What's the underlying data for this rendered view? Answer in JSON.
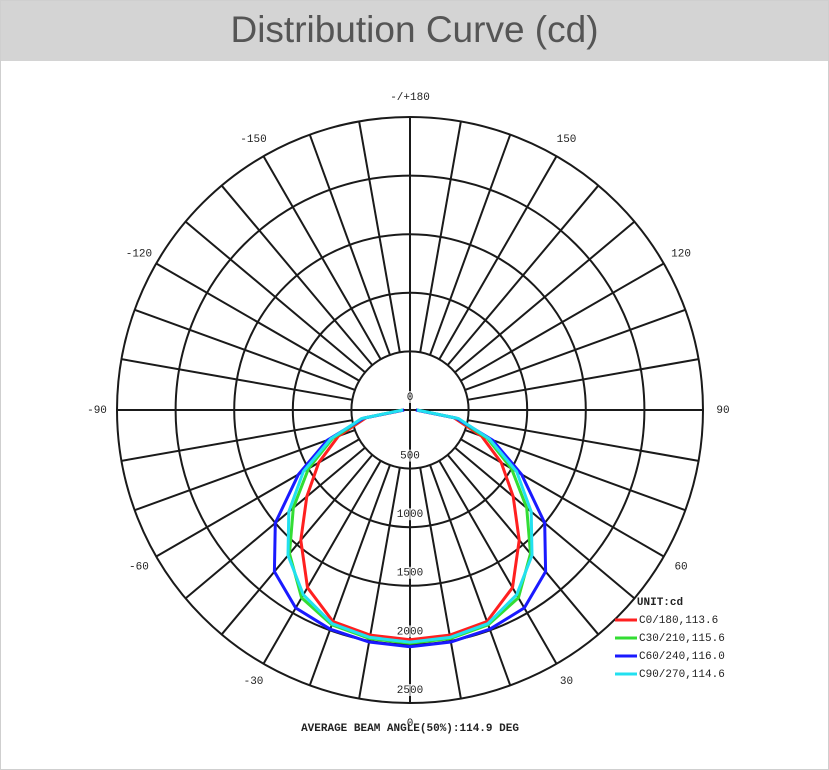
{
  "header": {
    "title": "Distribution Curve (cd)"
  },
  "chart_data": {
    "type": "polar",
    "angles": [
      -90,
      -80,
      -70,
      -60,
      -50,
      -40,
      -30,
      -20,
      -10,
      0,
      10,
      20,
      30,
      40,
      50,
      60,
      70,
      80,
      90
    ],
    "series": [
      {
        "name": "C0/180,113.6",
        "color": "#ff2020",
        "values": [
          50,
          380,
          650,
          900,
          1150,
          1450,
          1750,
          1920,
          1950,
          1960,
          1950,
          1920,
          1750,
          1450,
          1150,
          900,
          650,
          380,
          50
        ]
      },
      {
        "name": "C30/210,115.6",
        "color": "#33dd33",
        "values": [
          60,
          400,
          700,
          1000,
          1300,
          1600,
          1850,
          1950,
          1980,
          1990,
          1980,
          1950,
          1850,
          1600,
          1300,
          1000,
          700,
          400,
          60
        ]
      },
      {
        "name": "C60/240,116.0",
        "color": "#1a1aff",
        "values": [
          50,
          400,
          750,
          1100,
          1500,
          1800,
          1950,
          1990,
          2010,
          2020,
          2010,
          1990,
          1950,
          1800,
          1500,
          1100,
          750,
          400,
          50
        ]
      },
      {
        "name": "C90/270,114.6",
        "color": "#22e0f0",
        "values": [
          60,
          420,
          720,
          1050,
          1350,
          1620,
          1820,
          1940,
          1970,
          1980,
          1970,
          1940,
          1820,
          1620,
          1350,
          1050,
          720,
          420,
          60
        ]
      }
    ],
    "rlim": [
      0,
      2500
    ],
    "rticks": [
      0,
      500,
      1000,
      1500,
      2000,
      2500
    ],
    "thetaticks": [
      -150,
      -120,
      -90,
      -60,
      -30,
      0,
      30,
      60,
      90,
      120,
      150,
      {
        "value": 180,
        "label": "-/+180"
      }
    ],
    "theta_gridlines": [
      -170,
      -160,
      -150,
      -140,
      -130,
      -120,
      -110,
      -100,
      -90,
      -80,
      -70,
      -60,
      -50,
      -40,
      -30,
      -20,
      -10,
      0,
      10,
      20,
      30,
      40,
      50,
      60,
      70,
      80,
      90,
      100,
      110,
      120,
      130,
      140,
      150,
      160,
      170,
      180
    ],
    "legend_title": "UNIT:cd",
    "legend_position": "lower right",
    "footer": "AVERAGE BEAM ANGLE(50%):114.9 DEG"
  }
}
